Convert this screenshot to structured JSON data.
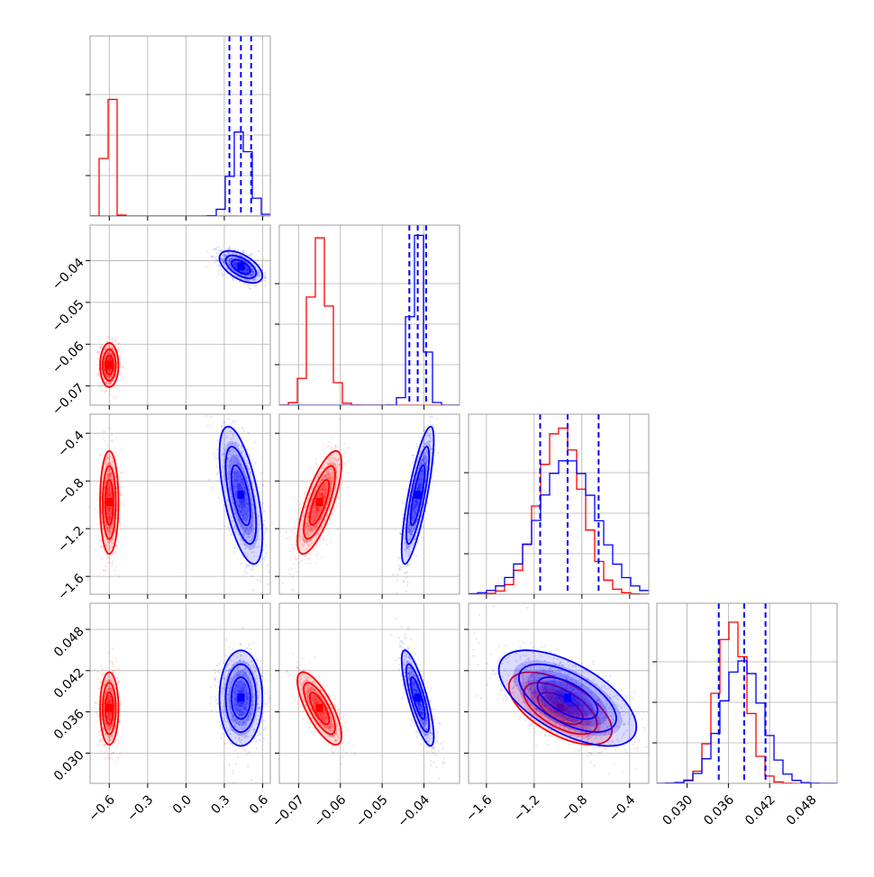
{
  "chart_data": {
    "type": "corner",
    "params": [
      {
        "id": "p1",
        "range": [
          -0.75,
          0.66
        ],
        "ticks": [
          -0.6,
          -0.3,
          0.0,
          0.3,
          0.6
        ],
        "tick_labels": [
          "−0.6",
          "−0.3",
          "0.0",
          "0.3",
          "0.6"
        ]
      },
      {
        "id": "p2",
        "range": [
          -0.0746,
          -0.0315
        ],
        "ticks": [
          -0.07,
          -0.06,
          -0.05,
          -0.04
        ],
        "tick_labels": [
          "−0.07",
          "−0.06",
          "−0.05",
          "−0.04"
        ]
      },
      {
        "id": "p3",
        "range": [
          -1.75,
          -0.24
        ],
        "ticks": [
          -1.6,
          -1.2,
          -0.8,
          -0.4
        ],
        "tick_labels": [
          "−1.6",
          "−1.2",
          "−0.8",
          "−0.4"
        ]
      },
      {
        "id": "p4",
        "range": [
          0.0256,
          0.0518
        ],
        "ticks": [
          0.03,
          0.036,
          0.042,
          0.048
        ],
        "tick_labels": [
          "0.030",
          "0.036",
          "0.042",
          "0.048"
        ]
      }
    ],
    "series": [
      {
        "color": "#ff0000",
        "means": [
          -0.6,
          -0.065,
          -0.98,
          0.0365
        ],
        "sds": [
          0.03,
          0.0022,
          0.18,
          0.0022
        ],
        "hist_peak_frac": [
          0.95,
          0.93,
          0.93,
          0.9
        ],
        "quantiles": null
      },
      {
        "color": "#0000ff",
        "means": [
          0.43,
          -0.0415,
          -0.92,
          0.038
        ],
        "sds": [
          0.07,
          0.0016,
          0.24,
          0.0029
        ],
        "hist_peak_frac": [
          0.48,
          0.96,
          0.75,
          0.68
        ],
        "quantiles": [
          [
            0.34,
            0.43,
            0.51
          ],
          [
            -0.0435,
            -0.0415,
            -0.0395
          ],
          [
            -1.15,
            -0.92,
            -0.66
          ],
          [
            0.0346,
            0.0383,
            0.0414
          ]
        ]
      }
    ],
    "correlations": {
      "red": {
        "1-2": 0.0,
        "1-3": 0.0,
        "2-3": 0.75,
        "1-4": 0.0,
        "2-4": -0.75,
        "3-4": -0.6
      },
      "blue": {
        "1-2": -0.55,
        "1-3": -0.6,
        "2-3": 0.8,
        "1-4": 0.0,
        "2-4": -0.8,
        "3-4": -0.6
      }
    },
    "grid": true
  }
}
